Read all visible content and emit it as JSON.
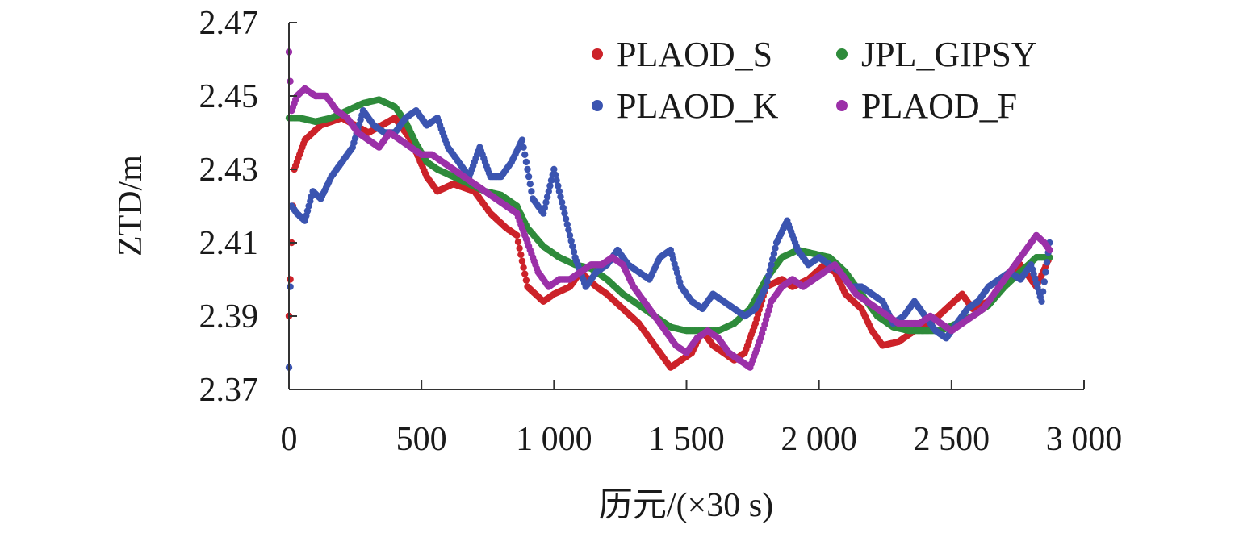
{
  "chart_data": {
    "type": "scatter",
    "ylabel": "ZTD/m",
    "xlabel": "历元/(×30 s)",
    "xlim": [
      0,
      3000
    ],
    "ylim": [
      2.37,
      2.47
    ],
    "xticks": [
      0,
      500,
      1000,
      1500,
      2000,
      2500,
      3000
    ],
    "xtick_labels": [
      "0",
      "500",
      "1 000",
      "1 500",
      "2 000",
      "2 500",
      "3 000"
    ],
    "yticks": [
      2.37,
      2.39,
      2.41,
      2.43,
      2.45,
      2.47
    ],
    "ytick_labels": [
      "2.37",
      "2.39",
      "2.41",
      "2.43",
      "2.45",
      "2.47"
    ],
    "grid": false,
    "legend_position": "top-right",
    "series": [
      {
        "name": "PLAOD_S",
        "color": "#cc2229",
        "x": [
          0,
          20,
          60,
          120,
          200,
          300,
          400,
          460,
          520,
          560,
          620,
          700,
          760,
          820,
          860,
          900,
          960,
          1000,
          1060,
          1100,
          1160,
          1200,
          1260,
          1320,
          1380,
          1440,
          1480,
          1520,
          1560,
          1600,
          1640,
          1680,
          1720,
          1760,
          1800,
          1860,
          1900,
          1960,
          2020,
          2060,
          2100,
          2160,
          2200,
          2240,
          2300,
          2360,
          2420,
          2480,
          2540,
          2580,
          2640,
          2700,
          2760,
          2820,
          2870
        ],
        "y": [
          2.39,
          2.43,
          2.438,
          2.442,
          2.444,
          2.44,
          2.444,
          2.438,
          2.428,
          2.424,
          2.426,
          2.424,
          2.418,
          2.414,
          2.412,
          2.398,
          2.394,
          2.396,
          2.398,
          2.402,
          2.398,
          2.396,
          2.392,
          2.388,
          2.382,
          2.376,
          2.378,
          2.38,
          2.386,
          2.382,
          2.38,
          2.378,
          2.38,
          2.388,
          2.398,
          2.4,
          2.398,
          2.4,
          2.404,
          2.402,
          2.396,
          2.392,
          2.386,
          2.382,
          2.383,
          2.386,
          2.388,
          2.392,
          2.396,
          2.392,
          2.394,
          2.4,
          2.404,
          2.398,
          2.406
        ]
      },
      {
        "name": "JPL_GIPSY",
        "color": "#2e8b3b",
        "x": [
          0,
          40,
          100,
          160,
          220,
          280,
          340,
          400,
          440,
          480,
          520,
          560,
          620,
          680,
          740,
          800,
          860,
          900,
          960,
          1020,
          1080,
          1140,
          1200,
          1260,
          1320,
          1380,
          1440,
          1500,
          1560,
          1620,
          1680,
          1740,
          1800,
          1860,
          1920,
          1980,
          2040,
          2100,
          2160,
          2220,
          2280,
          2340,
          2400,
          2460,
          2520,
          2580,
          2640,
          2700,
          2760,
          2820,
          2870
        ],
        "y": [
          2.444,
          2.444,
          2.443,
          2.444,
          2.446,
          2.448,
          2.449,
          2.447,
          2.443,
          2.437,
          2.432,
          2.43,
          2.428,
          2.426,
          2.424,
          2.423,
          2.42,
          2.414,
          2.409,
          2.406,
          2.404,
          2.403,
          2.4,
          2.396,
          2.393,
          2.39,
          2.387,
          2.386,
          2.386,
          2.386,
          2.388,
          2.392,
          2.4,
          2.406,
          2.408,
          2.407,
          2.406,
          2.402,
          2.396,
          2.39,
          2.387,
          2.386,
          2.386,
          2.386,
          2.388,
          2.39,
          2.393,
          2.398,
          2.402,
          2.406,
          2.406
        ]
      },
      {
        "name": "PLAOD_K",
        "color": "#3b54b0",
        "x": [
          0,
          10,
          30,
          60,
          90,
          120,
          160,
          200,
          240,
          280,
          320,
          360,
          400,
          440,
          480,
          520,
          560,
          600,
          640,
          680,
          720,
          760,
          800,
          840,
          880,
          920,
          960,
          1000,
          1040,
          1080,
          1120,
          1160,
          1200,
          1240,
          1280,
          1320,
          1360,
          1400,
          1440,
          1480,
          1520,
          1560,
          1600,
          1640,
          1680,
          1720,
          1760,
          1800,
          1840,
          1880,
          1920,
          1960,
          2000,
          2040,
          2080,
          2120,
          2160,
          2200,
          2240,
          2280,
          2320,
          2360,
          2400,
          2440,
          2480,
          2520,
          2560,
          2600,
          2640,
          2680,
          2720,
          2760,
          2800,
          2840,
          2870
        ],
        "y": [
          2.376,
          2.42,
          2.418,
          2.416,
          2.424,
          2.422,
          2.428,
          2.432,
          2.436,
          2.446,
          2.442,
          2.44,
          2.44,
          2.444,
          2.446,
          2.442,
          2.444,
          2.436,
          2.432,
          2.428,
          2.436,
          2.428,
          2.428,
          2.432,
          2.438,
          2.422,
          2.418,
          2.43,
          2.418,
          2.406,
          2.398,
          2.402,
          2.404,
          2.408,
          2.404,
          2.402,
          2.4,
          2.406,
          2.408,
          2.398,
          2.394,
          2.392,
          2.396,
          2.394,
          2.392,
          2.39,
          2.392,
          2.398,
          2.41,
          2.416,
          2.408,
          2.404,
          2.406,
          2.404,
          2.402,
          2.398,
          2.398,
          2.396,
          2.394,
          2.388,
          2.39,
          2.394,
          2.39,
          2.386,
          2.384,
          2.388,
          2.392,
          2.394,
          2.398,
          2.4,
          2.402,
          2.4,
          2.404,
          2.394,
          2.41
        ]
      },
      {
        "name": "PLAOD_F",
        "color": "#9b30a8",
        "x": [
          0,
          10,
          30,
          60,
          100,
          140,
          180,
          220,
          260,
          300,
          340,
          380,
          420,
          460,
          500,
          540,
          580,
          620,
          660,
          700,
          740,
          780,
          820,
          860,
          900,
          940,
          980,
          1020,
          1060,
          1100,
          1140,
          1180,
          1220,
          1260,
          1300,
          1340,
          1380,
          1420,
          1460,
          1500,
          1540,
          1580,
          1620,
          1660,
          1700,
          1740,
          1780,
          1820,
          1860,
          1900,
          1940,
          1980,
          2020,
          2060,
          2100,
          2140,
          2180,
          2220,
          2260,
          2300,
          2340,
          2380,
          2420,
          2460,
          2500,
          2540,
          2580,
          2620,
          2660,
          2700,
          2740,
          2780,
          2820,
          2850,
          2870
        ],
        "y": [
          2.462,
          2.446,
          2.45,
          2.452,
          2.45,
          2.45,
          2.446,
          2.444,
          2.44,
          2.438,
          2.436,
          2.44,
          2.438,
          2.436,
          2.434,
          2.434,
          2.432,
          2.43,
          2.428,
          2.426,
          2.424,
          2.422,
          2.42,
          2.418,
          2.41,
          2.402,
          2.398,
          2.4,
          2.4,
          2.402,
          2.404,
          2.404,
          2.406,
          2.404,
          2.398,
          2.394,
          2.39,
          2.386,
          2.382,
          2.38,
          2.384,
          2.386,
          2.384,
          2.38,
          2.378,
          2.376,
          2.384,
          2.394,
          2.398,
          2.4,
          2.398,
          2.4,
          2.402,
          2.404,
          2.4,
          2.396,
          2.394,
          2.392,
          2.39,
          2.388,
          2.388,
          2.388,
          2.39,
          2.388,
          2.386,
          2.388,
          2.39,
          2.392,
          2.396,
          2.4,
          2.404,
          2.408,
          2.412,
          2.41,
          2.408
        ]
      }
    ]
  }
}
